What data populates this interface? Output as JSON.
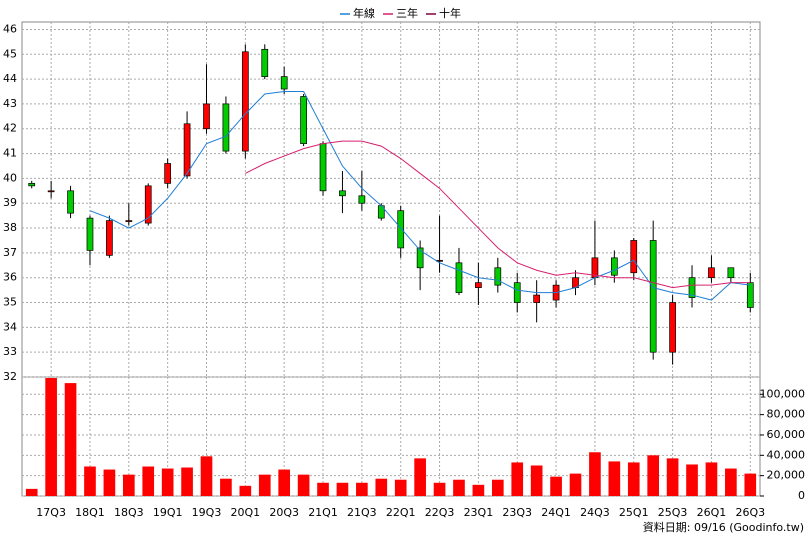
{
  "chart_data": {
    "type": "candlestick",
    "categories": [
      null,
      "17Q3",
      null,
      "18Q1",
      null,
      "18Q3",
      null,
      "19Q1",
      null,
      "19Q3",
      null,
      "20Q1",
      null,
      "20Q3",
      null,
      "21Q1",
      null,
      "21Q3",
      null,
      "22Q1",
      null,
      "22Q3",
      null,
      "23Q1",
      null,
      "23Q3",
      null,
      "24Q1",
      null,
      "24Q3",
      null,
      "25Q1",
      null,
      "25Q3",
      null,
      "26Q1",
      null,
      "26Q3"
    ],
    "open": [
      39.8,
      39.5,
      39.5,
      38.4,
      36.9,
      38.3,
      38.2,
      39.8,
      40.1,
      42.0,
      43.0,
      41.1,
      45.2,
      44.1,
      43.3,
      41.4,
      39.5,
      39.3,
      38.9,
      38.7,
      37.2,
      36.7,
      36.6,
      35.6,
      36.4,
      35.8,
      35.0,
      35.1,
      35.6,
      36.0,
      36.8,
      36.2,
      37.5,
      33.0,
      36.0,
      36.0,
      36.4,
      35.8
    ],
    "high": [
      39.9,
      39.9,
      39.7,
      38.5,
      38.5,
      39.0,
      39.8,
      40.8,
      42.7,
      44.6,
      43.3,
      45.4,
      45.4,
      44.5,
      43.4,
      41.5,
      40.3,
      40.3,
      39.0,
      38.9,
      37.5,
      38.5,
      37.2,
      36.6,
      36.8,
      36.2,
      35.9,
      35.9,
      36.3,
      38.3,
      37.1,
      37.6,
      38.3,
      35.3,
      36.5,
      36.9,
      36.4,
      36.2
    ],
    "low": [
      39.6,
      39.2,
      38.4,
      36.5,
      36.8,
      38.1,
      38.1,
      39.6,
      40.0,
      41.8,
      41.0,
      40.8,
      44.0,
      43.4,
      41.3,
      39.3,
      38.6,
      38.7,
      38.3,
      36.8,
      35.5,
      36.2,
      35.3,
      34.9,
      35.4,
      34.6,
      34.2,
      34.8,
      35.3,
      35.7,
      35.8,
      35.9,
      32.7,
      32.5,
      34.8,
      35.8,
      35.8,
      34.6
    ],
    "close": [
      39.7,
      39.5,
      38.6,
      37.1,
      38.3,
      38.3,
      39.7,
      40.6,
      42.2,
      43.0,
      41.1,
      45.1,
      44.1,
      43.6,
      41.4,
      39.5,
      39.3,
      39.0,
      38.4,
      37.2,
      36.4,
      36.7,
      35.4,
      35.8,
      35.7,
      35.0,
      35.3,
      35.7,
      36.0,
      36.8,
      36.1,
      37.5,
      33.0,
      35.0,
      35.2,
      36.4,
      36.0,
      34.8
    ],
    "up_color": "#ff0000",
    "down_color": "#00cc00",
    "series": [
      {
        "name": "年線",
        "color": "#1e7fd6",
        "values": [
          null,
          null,
          null,
          38.7,
          38.4,
          38.0,
          38.4,
          39.2,
          40.2,
          41.4,
          41.7,
          42.6,
          43.4,
          43.5,
          43.5,
          42.0,
          40.5,
          39.6,
          38.9,
          38.0,
          37.1,
          36.6,
          36.3,
          36.0,
          35.9,
          35.5,
          35.4,
          35.4,
          35.6,
          36.0,
          36.3,
          36.7,
          35.6,
          35.4,
          35.3,
          35.1,
          35.8,
          35.7
        ]
      },
      {
        "name": "三年",
        "color": "#d6206e",
        "values": [
          null,
          null,
          null,
          null,
          null,
          null,
          null,
          null,
          null,
          null,
          null,
          40.2,
          40.6,
          40.9,
          41.2,
          41.4,
          41.5,
          41.5,
          41.3,
          40.8,
          40.2,
          39.6,
          38.8,
          38.0,
          37.2,
          36.6,
          36.3,
          36.1,
          36.2,
          36.1,
          36.0,
          36.0,
          35.8,
          35.6,
          35.7,
          35.7,
          35.8,
          35.8
        ]
      },
      {
        "name": "十年",
        "color": "#800040",
        "values": [
          null,
          null,
          null,
          null,
          null,
          null,
          null,
          null,
          null,
          null,
          null,
          null,
          null,
          null,
          null,
          null,
          null,
          null,
          null,
          null,
          null,
          null,
          null,
          null,
          null,
          null,
          null,
          null,
          null,
          null,
          null,
          null,
          null,
          null,
          null,
          null,
          null,
          null
        ]
      }
    ],
    "ylim": [
      32,
      46.3
    ],
    "yticks": [
      32,
      33,
      34,
      35,
      36,
      37,
      38,
      39,
      40,
      41,
      42,
      43,
      44,
      45,
      46
    ],
    "grid": true,
    "volume": {
      "color": "#ff0000",
      "values": [
        7000,
        116000,
        111000,
        29000,
        26000,
        21000,
        29000,
        27000,
        28000,
        39000,
        17000,
        10000,
        21000,
        26000,
        21000,
        13000,
        13000,
        13000,
        17000,
        16000,
        37000,
        13000,
        16000,
        11000,
        16000,
        33000,
        30000,
        19000,
        22000,
        43000,
        34000,
        33000,
        40000,
        37000,
        31000,
        33000,
        27000,
        22000
      ],
      "ylim": [
        0,
        117000
      ],
      "yticks": [
        0,
        {
          "value": 20000,
          "label": "20,000"
        },
        {
          "value": 40000,
          "label": "40,000"
        },
        {
          "value": 60000,
          "label": "60,000"
        },
        {
          "value": 80000,
          "label": "80,000"
        },
        {
          "value": 100000,
          "label": "100,000"
        }
      ]
    },
    "footer": "資料日期: 09/16 (Goodinfo.tw)"
  }
}
